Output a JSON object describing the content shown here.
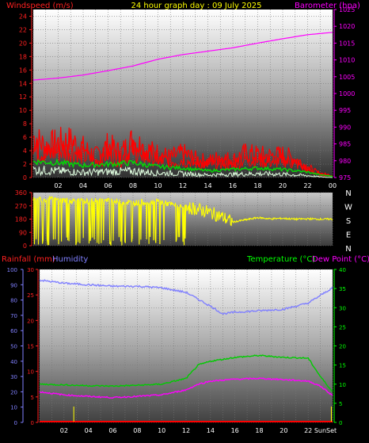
{
  "header": {
    "windspeed_label": "Windspeed (m/s)",
    "title": "24 hour graph day : 09 July 2025",
    "barometer_label": "Barometer (hpa)"
  },
  "lower_header": {
    "rainfall_label": "Rainfall (mm)",
    "humidity_label": "Humidity",
    "temperature_label": "Temperature (°C)",
    "dewpoint_label": "Dew Point (°C)"
  },
  "footer": {
    "sunset_label": "SunSet"
  },
  "colors": {
    "wind_gust": "#ff0000",
    "wind_avg": "#00dd00",
    "wind_low": "#e0ffe0",
    "barometer": "#ff00ff",
    "direction": "#ffff00",
    "humidity": "#8080ff",
    "temperature": "#00cc00",
    "dewpoint": "#ff00ff",
    "rain": "#ff0000",
    "rain_marker": "#ffff00"
  },
  "chart_data": [
    {
      "type": "line",
      "name": "wind-barometer",
      "x_ticks": [
        "02",
        "04",
        "06",
        "08",
        "10",
        "12",
        "14",
        "16",
        "18",
        "20",
        "22",
        "00"
      ],
      "y_left_ticks": [
        "0",
        "2",
        "4",
        "6",
        "8",
        "10",
        "12",
        "14",
        "16",
        "18",
        "20",
        "22",
        "24"
      ],
      "y_right_ticks": [
        "975",
        "980",
        "985",
        "990",
        "995",
        "1000",
        "1005",
        "1010",
        "1015",
        "1020",
        "1025"
      ],
      "ylim_left": [
        0,
        25
      ],
      "ylim_right": [
        975,
        1025
      ],
      "series": [
        {
          "key": "barometer",
          "x": [
            0,
            2,
            4,
            6,
            8,
            10,
            12,
            14,
            16,
            18,
            20,
            22,
            24
          ],
          "values": [
            1004,
            1004.6,
            1005.5,
            1006.8,
            1008.2,
            1010.2,
            1011.6,
            1012.6,
            1013.6,
            1015,
            1016.3,
            1017.5,
            1018.2
          ]
        },
        {
          "key": "gust",
          "x": [
            0,
            1,
            2,
            3,
            4,
            5,
            6,
            7,
            8,
            9,
            10,
            11,
            12,
            13,
            14,
            15,
            16,
            17,
            18,
            19,
            20,
            21,
            22,
            22.5,
            23,
            24
          ],
          "values": [
            6,
            4.6,
            5.2,
            5.4,
            4.4,
            3.2,
            4.8,
            3.6,
            5.6,
            4.2,
            3.6,
            3,
            3.6,
            2.8,
            2.4,
            3,
            2.6,
            3.6,
            3.4,
            3.2,
            3.4,
            2.8,
            1.6,
            1,
            0.6,
            0.3
          ]
        },
        {
          "key": "avg",
          "x": [
            0,
            2,
            4,
            6,
            8,
            10,
            12,
            14,
            16,
            18,
            20,
            22,
            23,
            24
          ],
          "values": [
            2.4,
            2.2,
            1.8,
            2,
            2.2,
            1.6,
            1.4,
            1,
            1.2,
            1.4,
            1.2,
            0.8,
            0.4,
            0.2
          ]
        },
        {
          "key": "low",
          "x": [
            0,
            2,
            4,
            6,
            8,
            10,
            12,
            14,
            16,
            18,
            20,
            22,
            23,
            24
          ],
          "values": [
            1.2,
            1,
            0.8,
            0.9,
            1,
            0.7,
            0.6,
            0.4,
            0.5,
            0.6,
            0.5,
            0.3,
            0.1,
            0
          ]
        }
      ]
    },
    {
      "type": "line",
      "name": "wind-direction",
      "y_ticks": [
        "360",
        "270",
        "180",
        "90",
        "0"
      ],
      "ylim": [
        0,
        360
      ],
      "direction_labels": [
        "N",
        "W",
        "S",
        "E",
        "N"
      ],
      "series": [
        {
          "key": "direction",
          "x": [
            0,
            2,
            4,
            6,
            8,
            10,
            11,
            12,
            13,
            14,
            15,
            16,
            17,
            18,
            19,
            20,
            21,
            22,
            23,
            24
          ],
          "values": [
            320,
            310,
            300,
            305,
            290,
            300,
            280,
            260,
            250,
            230,
            200,
            160,
            175,
            190,
            182,
            185,
            180,
            182,
            180,
            180
          ]
        }
      ]
    },
    {
      "type": "line",
      "name": "temperature-humidity",
      "y_left_ticks": [
        "0",
        "5",
        "10",
        "15",
        "20",
        "25",
        "30"
      ],
      "ylim_left": [
        0,
        30
      ],
      "y_far_left_ticks": [
        "0",
        "10",
        "20",
        "30",
        "40",
        "50",
        "60",
        "70",
        "80",
        "90",
        "100"
      ],
      "ylim_far_left": [
        0,
        100
      ],
      "y_right_ticks": [
        "0",
        "5",
        "10",
        "15",
        "20",
        "25",
        "30",
        "35",
        "40"
      ],
      "ylim_right": [
        0,
        40
      ],
      "x_ticks": [
        "02",
        "04",
        "06",
        "08",
        "10",
        "12",
        "14",
        "16",
        "18",
        "20",
        "22"
      ],
      "series": [
        {
          "key": "humidity",
          "x": [
            0,
            2,
            4,
            6,
            8,
            10,
            12,
            14,
            15,
            16,
            18,
            20,
            22,
            23,
            24
          ],
          "values": [
            93,
            91,
            90,
            89,
            89,
            88,
            85,
            76,
            71,
            72,
            73,
            74,
            78,
            83,
            88
          ]
        },
        {
          "key": "temperature",
          "x": [
            0,
            2,
            4,
            6,
            8,
            10,
            12,
            13,
            14,
            16,
            18,
            20,
            22,
            23,
            24
          ],
          "values": [
            10,
            9.8,
            9.6,
            9.5,
            9.7,
            10,
            11.5,
            15,
            16,
            17,
            17.5,
            17,
            16.8,
            12,
            8
          ]
        },
        {
          "key": "dewpoint",
          "x": [
            0,
            2,
            4,
            6,
            8,
            10,
            12,
            13,
            14,
            16,
            18,
            20,
            22,
            23,
            24
          ],
          "values": [
            8,
            7.2,
            6.8,
            6.5,
            6.8,
            7.2,
            8.5,
            10,
            10.8,
            11.3,
            11.5,
            11.2,
            10.8,
            9.5,
            7
          ]
        },
        {
          "key": "rain",
          "x": [
            0,
            24
          ],
          "values": [
            0,
            0
          ]
        }
      ]
    }
  ]
}
